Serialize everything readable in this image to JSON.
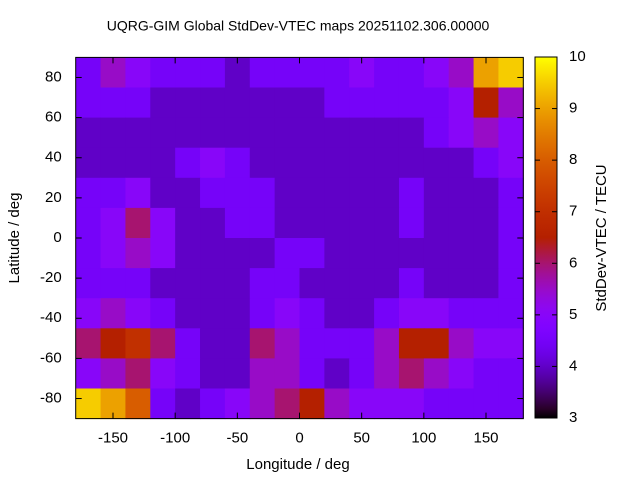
{
  "chart_data": {
    "type": "heatmap",
    "title": "UQRG-GIM Global StdDev-VTEC maps 20251102.306.00000",
    "x_label": "Longitude / deg",
    "y_label": "Latitude / deg",
    "colorbar_label": "StdDev-VTEC / TECU",
    "colormap": "gnuplot",
    "x": [
      -170,
      -150,
      -130,
      -110,
      -90,
      -70,
      -50,
      -30,
      -10,
      10,
      30,
      50,
      70,
      90,
      110,
      130,
      150,
      170
    ],
    "y": [
      82.5,
      67.5,
      52.5,
      37.5,
      22.5,
      7.5,
      -7.5,
      -22.5,
      -37.5,
      -52.5,
      -67.5,
      -82.5
    ],
    "values": [
      [
        4.5,
        5.5,
        5,
        4.5,
        4.5,
        4.5,
        4,
        4.5,
        4.5,
        4.5,
        4.5,
        5,
        4.5,
        4.5,
        5,
        5.5,
        9,
        9.5
      ],
      [
        4.5,
        4.5,
        4.5,
        4,
        4,
        4,
        4,
        4,
        4,
        4,
        4.5,
        4.5,
        4.5,
        4.5,
        4.5,
        5,
        6.5,
        5.5
      ],
      [
        4,
        4,
        4,
        4,
        4,
        4,
        4,
        4,
        4,
        4,
        4,
        4,
        4,
        4,
        4.5,
        5,
        5.5,
        5
      ],
      [
        4,
        4,
        4,
        4,
        4.5,
        5,
        4.5,
        4,
        4,
        4,
        4,
        4,
        4,
        4,
        4,
        4,
        4.5,
        5
      ],
      [
        4.5,
        4.5,
        5,
        4,
        4,
        4.5,
        4.5,
        4.5,
        4,
        4,
        4,
        4,
        4,
        4.5,
        4,
        4,
        4,
        4.5
      ],
      [
        4.5,
        5,
        6,
        5,
        4,
        4,
        4.5,
        4.5,
        4,
        4,
        4,
        4,
        4,
        4.5,
        4,
        4,
        4,
        4.5
      ],
      [
        4.5,
        5,
        5.5,
        5,
        4,
        4,
        4,
        4,
        4.5,
        4.5,
        4,
        4,
        4,
        4,
        4,
        4,
        4,
        4.5
      ],
      [
        4.5,
        4.5,
        4.5,
        4,
        4,
        4,
        4,
        4.5,
        4.5,
        4,
        4,
        4,
        4,
        4.5,
        4,
        4,
        4,
        4.5
      ],
      [
        5,
        5.5,
        5,
        4.5,
        4,
        4,
        4,
        4.5,
        5,
        4.5,
        4,
        4,
        4.5,
        5,
        5,
        4.5,
        4.5,
        4.5
      ],
      [
        6,
        6.5,
        7,
        6,
        4.5,
        4,
        4,
        6,
        5.5,
        4.5,
        4.5,
        4.5,
        5.5,
        6.5,
        6.5,
        5.5,
        5,
        5
      ],
      [
        5,
        5.5,
        6,
        5,
        4.5,
        4,
        4,
        5.5,
        5.5,
        4.5,
        4,
        4.5,
        5.5,
        6,
        5.5,
        5,
        4.5,
        4.5
      ],
      [
        9.5,
        9,
        8,
        4.5,
        4,
        4.5,
        5,
        5.5,
        6,
        6.5,
        5.5,
        5,
        5,
        5,
        4.5,
        4.5,
        4.5,
        4.5
      ]
    ],
    "xlim": [
      -180,
      180
    ],
    "ylim": [
      -90,
      90
    ],
    "xticks": [
      -150,
      -100,
      -50,
      0,
      50,
      100,
      150
    ],
    "yticks": [
      -80,
      -60,
      -40,
      -20,
      0,
      20,
      40,
      60,
      80
    ],
    "zlim": [
      3,
      10
    ],
    "zticks": [
      3,
      4,
      5,
      6,
      7,
      8,
      9,
      10
    ]
  }
}
